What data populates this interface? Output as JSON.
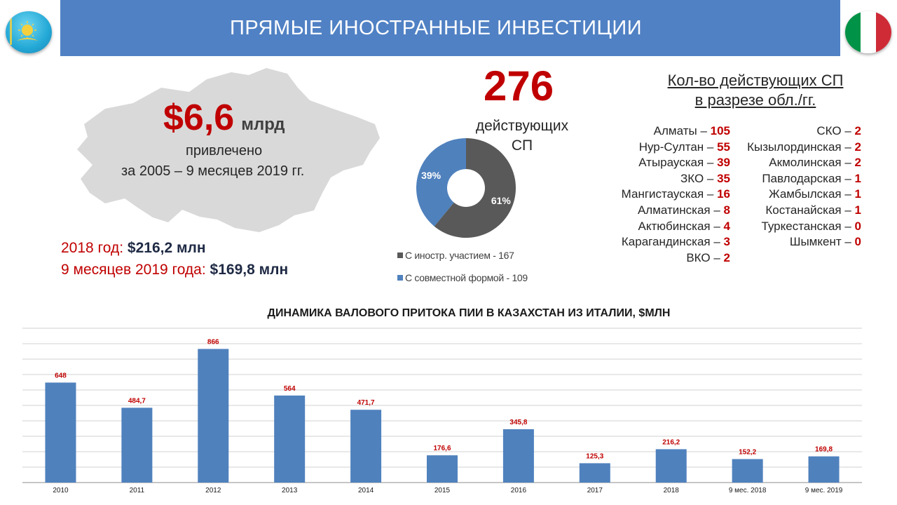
{
  "header": {
    "title": "ПРЯМЫЕ ИНОСТРАННЫЕ ИНВЕСТИЦИИ"
  },
  "flags": {
    "left": "kazakhstan-flag-icon",
    "right": "italy-flag-icon"
  },
  "colors": {
    "header_bg": "#5081c4",
    "accent_red": "#c00000",
    "bar_blue": "#4f81bd",
    "donut_dark": "#595959",
    "map_gray": "#d9d9d9",
    "italy_green": "#009246",
    "italy_red": "#ce2b37"
  },
  "investment": {
    "amount": "$6,6",
    "unit": "млрд",
    "attracted": "привлечено",
    "period": "за 2005 – 9 месяцев 2019 гг.",
    "year_2018_label": "2018 год:",
    "year_2018_value": "$216,2 млн",
    "months9_label": "9 месяцев 2019 года:",
    "months9_value": "$169,8 млн"
  },
  "joint_ventures": {
    "count": "276",
    "label_line1": "действующих",
    "label_line2": "СП",
    "donut": [
      {
        "label": "39%",
        "value": 39,
        "color": "#4f81bd"
      },
      {
        "label": "61%",
        "value": 61,
        "color": "#595959"
      }
    ],
    "legend": [
      {
        "label": "С иностр. участием - 167",
        "color": "#595959"
      },
      {
        "label": "С совместной формой - 109",
        "color": "#4f81bd"
      }
    ]
  },
  "regions": {
    "title_line1": "Кол-во действующих СП",
    "title_line2": "в разрезе обл./гг.",
    "col1": [
      {
        "name": "Алматы",
        "count": "105"
      },
      {
        "name": "Нур-Султан",
        "count": "55"
      },
      {
        "name": "Атырауская",
        "count": "39"
      },
      {
        "name": "ЗКО",
        "count": "35"
      },
      {
        "name": "Мангистауская",
        "count": "16"
      },
      {
        "name": "Алматинская",
        "count": "8"
      },
      {
        "name": "Актюбинская",
        "count": "4"
      },
      {
        "name": "Карагандинская",
        "count": "3"
      },
      {
        "name": "ВКО",
        "count": "2"
      }
    ],
    "col2": [
      {
        "name": "СКО",
        "count": "2"
      },
      {
        "name": "Кызылординская",
        "count": "2"
      },
      {
        "name": "Акмолинская",
        "count": "2"
      },
      {
        "name": "Павлодарская",
        "count": "1"
      },
      {
        "name": "Жамбылская",
        "count": "1"
      },
      {
        "name": "Костанайская",
        "count": "1"
      },
      {
        "name": "Туркестанская",
        "count": "0"
      },
      {
        "name": "Шымкент",
        "count": "0"
      }
    ]
  },
  "chart_data": {
    "type": "bar",
    "title": "ДИНАМИКА ВАЛОВОГО ПРИТОКА ПИИ В КАЗАХСТАН ИЗ ИТАЛИИ, $МЛН",
    "categories": [
      "2010",
      "2011",
      "2012",
      "2013",
      "2014",
      "2015",
      "2016",
      "2017",
      "2018",
      "9 мес. 2018",
      "9 мес. 2019"
    ],
    "values": [
      648,
      484.7,
      866,
      564,
      471.7,
      176.6,
      345.8,
      125.3,
      216.2,
      152.2,
      169.8
    ],
    "value_labels": [
      "648",
      "484,7",
      "866",
      "564",
      "471,7",
      "176,6",
      "345,8",
      "125,3",
      "216,2",
      "152,2",
      "169,8"
    ],
    "ylim": [
      0,
      1000
    ],
    "grid": true,
    "bar_color": "#4f81bd",
    "label_color": "#c00000"
  }
}
